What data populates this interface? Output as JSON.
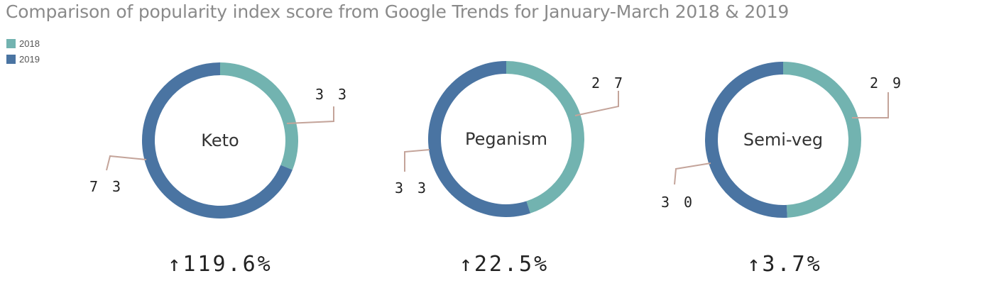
{
  "chart_data": {
    "type": "pie",
    "title": "Comparison of popularity index score from Google Trends for January-March 2018 & 2019",
    "legend": {
      "position": "top-left",
      "entries": [
        {
          "label": "2018",
          "color": "#72b3b0"
        },
        {
          "label": "2019",
          "color": "#4a74a2"
        }
      ]
    },
    "charts": [
      {
        "name": "Keto",
        "values": {
          "2018": 33,
          "2019": 73
        },
        "labels": {
          "2018": "3 3",
          "2019": "7 3"
        },
        "change": "↑119.6%"
      },
      {
        "name": "Peganism",
        "values": {
          "2018": 27,
          "2019": 33
        },
        "labels": {
          "2018": "2 7",
          "2019": "3 3"
        },
        "change": "↑22.5%"
      },
      {
        "name": "Semi-veg",
        "values": {
          "2018": 29,
          "2019": 30
        },
        "labels": {
          "2018": "2 9",
          "2019": "3 0"
        },
        "change": "↑3.7%"
      }
    ]
  },
  "colors": {
    "series_2018": "#72b3b0",
    "series_2019": "#4a74a2",
    "leader_line": "#c4a49a",
    "title": "#8a8a8a"
  }
}
